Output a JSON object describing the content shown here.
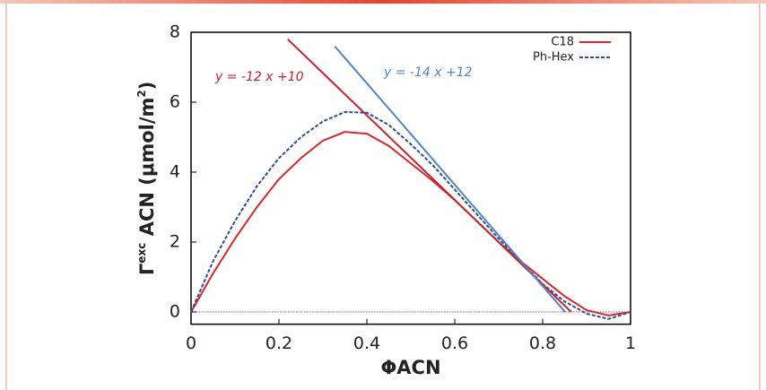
{
  "chart_data": {
    "type": "line",
    "xlabel": [
      "Φ",
      "ACN"
    ],
    "ylabel": [
      "Γ",
      "exc",
      " ACN (μmol/m",
      "2",
      ")"
    ],
    "x": [
      0,
      0.05,
      0.1,
      0.15,
      0.2,
      0.25,
      0.3,
      0.35,
      0.4,
      0.45,
      0.5,
      0.55,
      0.6,
      0.65,
      0.7,
      0.75,
      0.8,
      0.85,
      0.9,
      0.95,
      1
    ],
    "series": [
      {
        "name": "C18",
        "color": "#e0242b",
        "dash": false,
        "values": [
          0,
          1.1,
          2.1,
          3.0,
          3.8,
          4.4,
          4.9,
          5.15,
          5.1,
          4.75,
          4.25,
          3.75,
          3.2,
          2.6,
          2.0,
          1.45,
          0.95,
          0.45,
          0.05,
          -0.1,
          0
        ]
      },
      {
        "name": "Ph-Hex",
        "color": "#2a4d9c",
        "dash": true,
        "values": [
          0,
          1.45,
          2.6,
          3.6,
          4.4,
          5.0,
          5.45,
          5.72,
          5.7,
          5.35,
          4.8,
          4.2,
          3.5,
          2.8,
          2.1,
          1.45,
          0.8,
          0.3,
          -0.05,
          -0.2,
          0
        ]
      }
    ],
    "tangents": [
      {
        "label": "y = -12 x +10",
        "color": "#c8232c",
        "x": [
          0.22,
          0.865
        ],
        "values": [
          7.8,
          0
        ]
      },
      {
        "label": "y = -14 x +12",
        "color": "#4f86c6",
        "x": [
          0.327,
          0.851
        ],
        "values": [
          7.6,
          0
        ]
      }
    ],
    "xlim": [
      0,
      1
    ],
    "ylim": [
      -0.35,
      8
    ],
    "xticks": [
      0,
      0.2,
      0.4,
      0.6,
      0.8,
      1
    ],
    "yticks": [
      0,
      2,
      4,
      6,
      8
    ],
    "zero_line": true,
    "legend": "top-right"
  }
}
